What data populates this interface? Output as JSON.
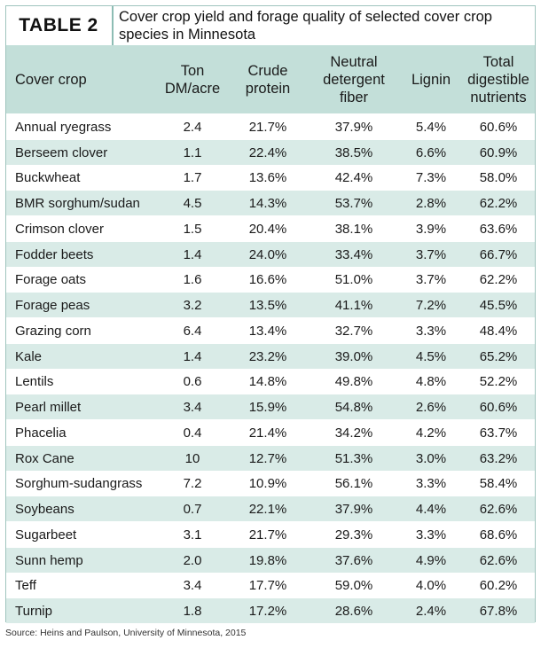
{
  "table": {
    "tag": "TABLE 2",
    "title_line1": "Cover crop yield and forage quality of selected cover crop",
    "title_line2": "species in Minnesota",
    "headers": {
      "crop": [
        "Cover crop"
      ],
      "ton": [
        "Ton",
        "DM/acre"
      ],
      "protein": [
        "Crude",
        "protein"
      ],
      "ndf": [
        "Neutral",
        "detergent",
        "fiber"
      ],
      "lignin": [
        "Lignin"
      ],
      "tdn": [
        "Total",
        "digestible",
        "nutrients"
      ]
    },
    "rows": [
      [
        "Annual ryegrass",
        "2.4",
        "21.7%",
        "37.9%",
        "5.4%",
        "60.6%"
      ],
      [
        "Berseem clover",
        "1.1",
        "22.4%",
        "38.5%",
        "6.6%",
        "60.9%"
      ],
      [
        "Buckwheat",
        "1.7",
        "13.6%",
        "42.4%",
        "7.3%",
        "58.0%"
      ],
      [
        "BMR sorghum/sudan",
        "4.5",
        "14.3%",
        "53.7%",
        "2.8%",
        "62.2%"
      ],
      [
        "Crimson clover",
        "1.5",
        "20.4%",
        "38.1%",
        "3.9%",
        "63.6%"
      ],
      [
        "Fodder beets",
        "1.4",
        "24.0%",
        "33.4%",
        "3.7%",
        "66.7%"
      ],
      [
        "Forage oats",
        "1.6",
        "16.6%",
        "51.0%",
        "3.7%",
        "62.2%"
      ],
      [
        "Forage peas",
        "3.2",
        "13.5%",
        "41.1%",
        "7.2%",
        "45.5%"
      ],
      [
        "Grazing corn",
        "6.4",
        "13.4%",
        "32.7%",
        "3.3%",
        "48.4%"
      ],
      [
        "Kale",
        "1.4",
        "23.2%",
        "39.0%",
        "4.5%",
        "65.2%"
      ],
      [
        "Lentils",
        "0.6",
        "14.8%",
        "49.8%",
        "4.8%",
        "52.2%"
      ],
      [
        "Pearl millet",
        "3.4",
        "15.9%",
        "54.8%",
        "2.6%",
        "60.6%"
      ],
      [
        "Phacelia",
        "0.4",
        "21.4%",
        "34.2%",
        "4.2%",
        "63.7%"
      ],
      [
        "Rox Cane",
        "10",
        "12.7%",
        "51.3%",
        "3.0%",
        "63.2%"
      ],
      [
        "Sorghum-sudangrass",
        "7.2",
        "10.9%",
        "56.1%",
        "3.3%",
        "58.4%"
      ],
      [
        "Soybeans",
        "0.7",
        "22.1%",
        "37.9%",
        "4.4%",
        "62.6%"
      ],
      [
        "Sugarbeet",
        "3.1",
        "21.7%",
        "29.3%",
        "3.3%",
        "68.6%"
      ],
      [
        "Sunn hemp",
        "2.0",
        "19.8%",
        "37.6%",
        "4.9%",
        "62.6%"
      ],
      [
        "Teff",
        "3.4",
        "17.7%",
        "59.0%",
        "4.0%",
        "60.2%"
      ],
      [
        "Turnip",
        "1.8",
        "17.2%",
        "28.6%",
        "2.4%",
        "67.8%"
      ]
    ]
  },
  "source": "Source: Heins and Paulson, University of Minnesota, 2015",
  "colors": {
    "header_bg": "#c3dfd9",
    "stripe_bg": "#d9ebe7",
    "accent_line": "#8dbdb4"
  }
}
